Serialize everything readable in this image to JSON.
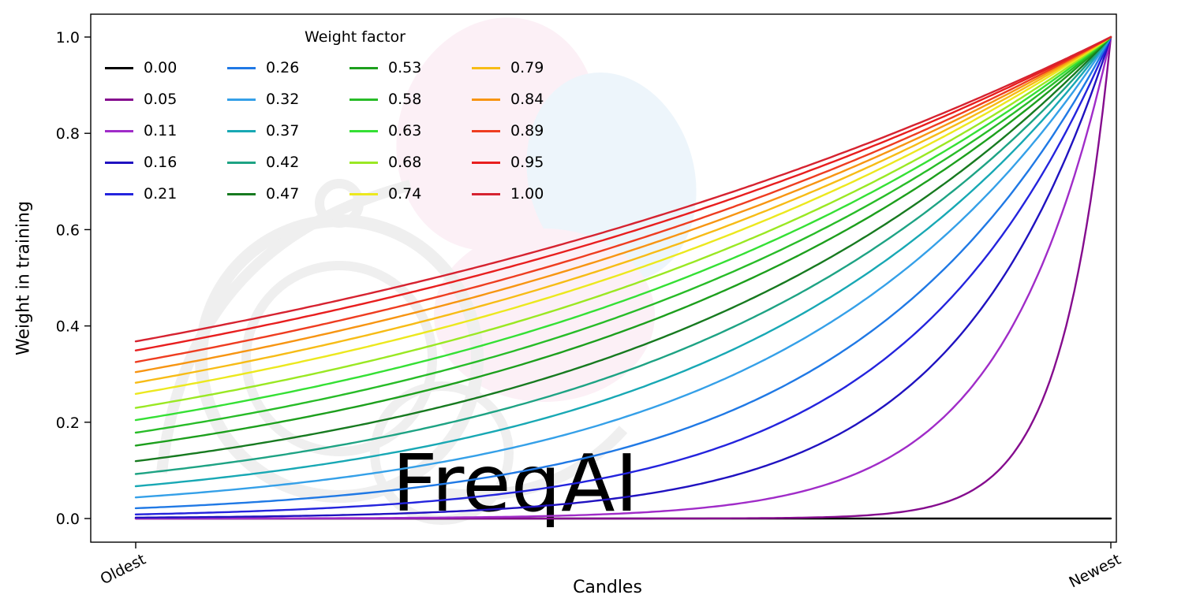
{
  "figure": {
    "background": "#ffffff",
    "watermark": {
      "text": "FreqAI",
      "text_color": "#e9eff5",
      "logo_color": "#efefef",
      "leaf_pink": "#fcf0f6",
      "leaf_blue": "#edf5fb"
    }
  },
  "chart_data": {
    "type": "line",
    "title": "",
    "xlabel": "Candles",
    "ylabel": "Weight in training",
    "x_tick_labels": [
      "Oldest",
      "Newest"
    ],
    "y_tick_labels": [
      "0.0",
      "0.2",
      "0.4",
      "0.6",
      "0.8",
      "1.0"
    ],
    "y_ticks": [
      0.0,
      0.2,
      0.4,
      0.6,
      0.8,
      1.0
    ],
    "x_range": [
      0,
      1
    ],
    "ylim": [
      -0.05,
      1.05
    ],
    "grid": false,
    "legend": {
      "title": "Weight factor",
      "position": "upper left",
      "columns": 4,
      "rows": 5
    },
    "formula": "weight(x) = exp(-(1 - x) / factor) for factor > 0; factor = 0 gives weight = 0 everywhere",
    "series": [
      {
        "label": "0.00",
        "factor": 0.0,
        "color": "#000000",
        "weight_oldest": 0.0,
        "weight_newest": 0.0
      },
      {
        "label": "0.05",
        "factor": 0.05,
        "color": "#850c8e",
        "weight_oldest": 0.0,
        "weight_newest": 1.0
      },
      {
        "label": "0.11",
        "factor": 0.11,
        "color": "#a02cc8",
        "weight_oldest": 0.0001,
        "weight_newest": 1.0
      },
      {
        "label": "0.16",
        "factor": 0.16,
        "color": "#2012c0",
        "weight_oldest": 0.0019,
        "weight_newest": 1.0
      },
      {
        "label": "0.21",
        "factor": 0.21,
        "color": "#2424dd",
        "weight_oldest": 0.0086,
        "weight_newest": 1.0
      },
      {
        "label": "0.26",
        "factor": 0.26,
        "color": "#2079e5",
        "weight_oldest": 0.0213,
        "weight_newest": 1.0
      },
      {
        "label": "0.32",
        "factor": 0.32,
        "color": "#35a0e8",
        "weight_oldest": 0.0439,
        "weight_newest": 1.0
      },
      {
        "label": "0.37",
        "factor": 0.37,
        "color": "#18a8b4",
        "weight_oldest": 0.067,
        "weight_newest": 1.0
      },
      {
        "label": "0.42",
        "factor": 0.42,
        "color": "#1ea384",
        "weight_oldest": 0.0924,
        "weight_newest": 1.0
      },
      {
        "label": "0.47",
        "factor": 0.47,
        "color": "#177a20",
        "weight_oldest": 0.1191,
        "weight_newest": 1.0
      },
      {
        "label": "0.53",
        "factor": 0.53,
        "color": "#1d9f1d",
        "weight_oldest": 0.1516,
        "weight_newest": 1.0
      },
      {
        "label": "0.58",
        "factor": 0.58,
        "color": "#28bc28",
        "weight_oldest": 0.1783,
        "weight_newest": 1.0
      },
      {
        "label": "0.63",
        "factor": 0.63,
        "color": "#35e035",
        "weight_oldest": 0.2044,
        "weight_newest": 1.0
      },
      {
        "label": "0.68",
        "factor": 0.68,
        "color": "#9ae823",
        "weight_oldest": 0.2298,
        "weight_newest": 1.0
      },
      {
        "label": "0.74",
        "factor": 0.74,
        "color": "#ece81e",
        "weight_oldest": 0.2589,
        "weight_newest": 1.0
      },
      {
        "label": "0.79",
        "factor": 0.79,
        "color": "#f7bc16",
        "weight_oldest": 0.282,
        "weight_newest": 1.0
      },
      {
        "label": "0.84",
        "factor": 0.84,
        "color": "#f79512",
        "weight_oldest": 0.304,
        "weight_newest": 1.0
      },
      {
        "label": "0.89",
        "factor": 0.89,
        "color": "#ee3d20",
        "weight_oldest": 0.3251,
        "weight_newest": 1.0
      },
      {
        "label": "0.95",
        "factor": 0.95,
        "color": "#e81e1e",
        "weight_oldest": 0.349,
        "weight_newest": 1.0
      },
      {
        "label": "1.00",
        "factor": 1.0,
        "color": "#d62330",
        "weight_oldest": 0.3679,
        "weight_newest": 1.0
      }
    ]
  }
}
